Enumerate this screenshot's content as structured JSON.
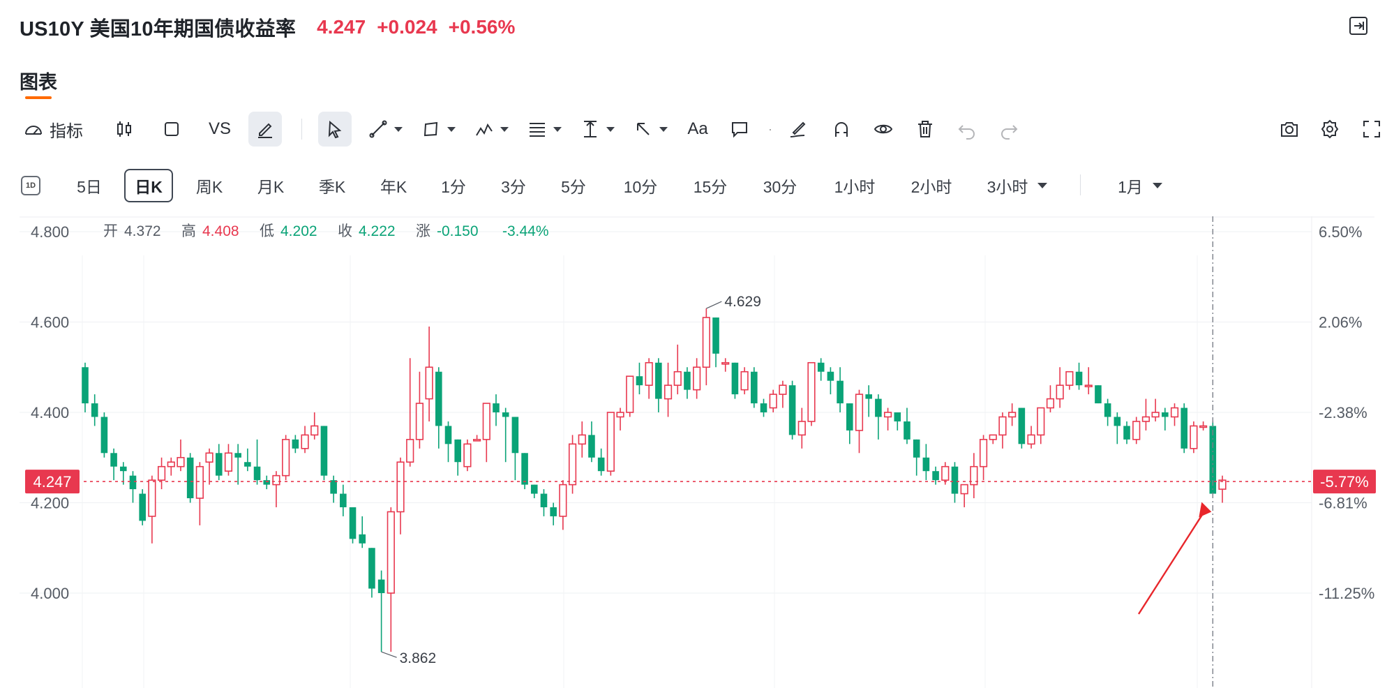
{
  "header": {
    "symbol": "US10Y",
    "name": "美国10年期国债收益率",
    "last": "4.247",
    "change": "+0.024",
    "change_pct": "+0.56%"
  },
  "tab": {
    "label": "图表"
  },
  "toolbar": {
    "indicator_label": "指标",
    "vs_label": "VS",
    "font_label": "Aa"
  },
  "periods": [
    "5日",
    "日K",
    "周K",
    "月K",
    "季K",
    "年K",
    "1分",
    "3分",
    "5分",
    "10分",
    "15分",
    "30分",
    "1小时",
    "2小时",
    "3小时",
    "1月"
  ],
  "selected_period": "日K",
  "icon_1d_label": "1D",
  "ohlc_info": {
    "open_label": "开",
    "open": "4.372",
    "high_label": "高",
    "high": "4.408",
    "low_label": "低",
    "low": "4.202",
    "close_label": "收",
    "close": "4.222",
    "chg_label": "涨",
    "chg": "-0.150",
    "chg_pct": "-3.44%"
  },
  "colors": {
    "up": "#e8384f",
    "down": "#0aa377",
    "accent": "#ff6a00",
    "price_line": "#e8384f"
  },
  "chart_data": {
    "type": "candlestick",
    "ylim": [
      3.82,
      4.82
    ],
    "left_ticks": [
      "4.800",
      "4.600",
      "4.400",
      "4.200",
      "4.000"
    ],
    "left_tick_values": [
      4.8,
      4.6,
      4.4,
      4.2,
      4.0
    ],
    "right_ticks": [
      "6.50%",
      "2.06%",
      "-2.38%",
      "-6.81%",
      "-11.25%"
    ],
    "current_price": 4.247,
    "current_price_label": "4.247",
    "current_pct_label": "-5.77%",
    "max_label": "4.629",
    "min_label": "3.862",
    "candles": [
      [
        4.5,
        4.42,
        4.51,
        4.4
      ],
      [
        4.42,
        4.39,
        4.44,
        4.37
      ],
      [
        4.39,
        4.31,
        4.4,
        4.3
      ],
      [
        4.31,
        4.28,
        4.32,
        4.25
      ],
      [
        4.28,
        4.27,
        4.29,
        4.24
      ],
      [
        4.26,
        4.23,
        4.27,
        4.2
      ],
      [
        4.22,
        4.16,
        4.23,
        4.15
      ],
      [
        4.17,
        4.25,
        4.26,
        4.11
      ],
      [
        4.25,
        4.28,
        4.3,
        4.23
      ],
      [
        4.28,
        4.29,
        4.3,
        4.26
      ],
      [
        4.28,
        4.3,
        4.34,
        4.27
      ],
      [
        4.3,
        4.21,
        4.31,
        4.2
      ],
      [
        4.21,
        4.28,
        4.29,
        4.15
      ],
      [
        4.29,
        4.31,
        4.32,
        4.24
      ],
      [
        4.31,
        4.26,
        4.33,
        4.25
      ],
      [
        4.27,
        4.31,
        4.33,
        4.26
      ],
      [
        4.31,
        4.3,
        4.33,
        4.24
      ],
      [
        4.29,
        4.28,
        4.32,
        4.27
      ],
      [
        4.28,
        4.25,
        4.34,
        4.24
      ],
      [
        4.25,
        4.24,
        4.26,
        4.23
      ],
      [
        4.24,
        4.26,
        4.27,
        4.19
      ],
      [
        4.26,
        4.34,
        4.35,
        4.25
      ],
      [
        4.34,
        4.32,
        4.35,
        4.31
      ],
      [
        4.32,
        4.35,
        4.37,
        4.31
      ],
      [
        4.35,
        4.37,
        4.4,
        4.34
      ],
      [
        4.37,
        4.26,
        4.37,
        4.25
      ],
      [
        4.25,
        4.22,
        4.26,
        4.2
      ],
      [
        4.22,
        4.19,
        4.24,
        4.17
      ],
      [
        4.19,
        4.12,
        4.19,
        4.11
      ],
      [
        4.13,
        4.11,
        4.17,
        4.1
      ],
      [
        4.1,
        4.01,
        4.1,
        3.99
      ],
      [
        4.03,
        4.0,
        4.05,
        3.87
      ],
      [
        4.0,
        4.18,
        4.19,
        3.87
      ],
      [
        4.18,
        4.29,
        4.3,
        4.13
      ],
      [
        4.29,
        4.34,
        4.52,
        4.28
      ],
      [
        4.34,
        4.42,
        4.49,
        4.32
      ],
      [
        4.43,
        4.5,
        4.59,
        4.38
      ],
      [
        4.49,
        4.37,
        4.5,
        4.32
      ],
      [
        4.37,
        4.33,
        4.38,
        4.29
      ],
      [
        4.34,
        4.29,
        4.34,
        4.26
      ],
      [
        4.28,
        4.33,
        4.34,
        4.27
      ],
      [
        4.34,
        4.34,
        4.35,
        4.34
      ],
      [
        4.34,
        4.42,
        4.42,
        4.29
      ],
      [
        4.42,
        4.4,
        4.44,
        4.37
      ],
      [
        4.4,
        4.39,
        4.41,
        4.29
      ],
      [
        4.39,
        4.31,
        4.39,
        4.25
      ],
      [
        4.31,
        4.24,
        4.31,
        4.23
      ],
      [
        4.24,
        4.22,
        4.24,
        4.21
      ],
      [
        4.22,
        4.19,
        4.23,
        4.17
      ],
      [
        4.19,
        4.17,
        4.2,
        4.15
      ],
      [
        4.17,
        4.24,
        4.25,
        4.14
      ],
      [
        4.24,
        4.33,
        4.35,
        4.22
      ],
      [
        4.33,
        4.35,
        4.38,
        4.3
      ],
      [
        4.35,
        4.3,
        4.38,
        4.29
      ],
      [
        4.3,
        4.27,
        4.32,
        4.26
      ],
      [
        4.27,
        4.4,
        4.4,
        4.26
      ],
      [
        4.39,
        4.4,
        4.41,
        4.36
      ],
      [
        4.4,
        4.48,
        4.48,
        4.39
      ],
      [
        4.48,
        4.46,
        4.51,
        4.44
      ],
      [
        4.46,
        4.51,
        4.52,
        4.43
      ],
      [
        4.51,
        4.43,
        4.52,
        4.4
      ],
      [
        4.43,
        4.46,
        4.51,
        4.39
      ],
      [
        4.46,
        4.49,
        4.55,
        4.44
      ],
      [
        4.49,
        4.45,
        4.5,
        4.43
      ],
      [
        4.45,
        4.5,
        4.52,
        4.43
      ],
      [
        4.5,
        4.61,
        4.63,
        4.46
      ],
      [
        4.61,
        4.53,
        4.61,
        4.5
      ],
      [
        4.51,
        4.51,
        4.52,
        4.49
      ],
      [
        4.51,
        4.44,
        4.51,
        4.43
      ],
      [
        4.45,
        4.49,
        4.5,
        4.44
      ],
      [
        4.49,
        4.42,
        4.5,
        4.41
      ],
      [
        4.42,
        4.4,
        4.43,
        4.39
      ],
      [
        4.41,
        4.44,
        4.45,
        4.4
      ],
      [
        4.44,
        4.46,
        4.47,
        4.41
      ],
      [
        4.46,
        4.35,
        4.47,
        4.34
      ],
      [
        4.35,
        4.38,
        4.41,
        4.32
      ],
      [
        4.38,
        4.51,
        4.51,
        4.37
      ],
      [
        4.51,
        4.49,
        4.52,
        4.47
      ],
      [
        4.49,
        4.47,
        4.5,
        4.44
      ],
      [
        4.47,
        4.42,
        4.5,
        4.4
      ],
      [
        4.42,
        4.36,
        4.42,
        4.33
      ],
      [
        4.36,
        4.44,
        4.45,
        4.31
      ],
      [
        4.44,
        4.43,
        4.46,
        4.39
      ],
      [
        4.43,
        4.39,
        4.44,
        4.34
      ],
      [
        4.39,
        4.4,
        4.41,
        4.36
      ],
      [
        4.4,
        4.38,
        4.4,
        4.36
      ],
      [
        4.38,
        4.34,
        4.41,
        4.33
      ],
      [
        4.34,
        4.3,
        4.34,
        4.26
      ],
      [
        4.3,
        4.27,
        4.33,
        4.25
      ],
      [
        4.27,
        4.25,
        4.28,
        4.24
      ],
      [
        4.25,
        4.28,
        4.29,
        4.24
      ],
      [
        4.28,
        4.22,
        4.29,
        4.2
      ],
      [
        4.22,
        4.24,
        4.24,
        4.19
      ],
      [
        4.24,
        4.28,
        4.31,
        4.21
      ],
      [
        4.28,
        4.34,
        4.35,
        4.25
      ],
      [
        4.34,
        4.35,
        4.35,
        4.33
      ],
      [
        4.35,
        4.39,
        4.4,
        4.32
      ],
      [
        4.39,
        4.4,
        4.42,
        4.37
      ],
      [
        4.41,
        4.33,
        4.41,
        4.32
      ],
      [
        4.33,
        4.35,
        4.37,
        4.32
      ],
      [
        4.35,
        4.41,
        4.41,
        4.33
      ],
      [
        4.41,
        4.43,
        4.46,
        4.4
      ],
      [
        4.43,
        4.46,
        4.5,
        4.41
      ],
      [
        4.46,
        4.49,
        4.49,
        4.45
      ],
      [
        4.49,
        4.46,
        4.51,
        4.45
      ],
      [
        4.46,
        4.46,
        4.5,
        4.44
      ],
      [
        4.46,
        4.42,
        4.46,
        4.42
      ],
      [
        4.42,
        4.39,
        4.43,
        4.37
      ],
      [
        4.39,
        4.37,
        4.4,
        4.33
      ],
      [
        4.37,
        4.34,
        4.38,
        4.33
      ],
      [
        4.34,
        4.38,
        4.39,
        4.33
      ],
      [
        4.38,
        4.39,
        4.43,
        4.36
      ],
      [
        4.39,
        4.4,
        4.43,
        4.38
      ],
      [
        4.4,
        4.39,
        4.41,
        4.36
      ],
      [
        4.39,
        4.41,
        4.42,
        4.37
      ],
      [
        4.41,
        4.32,
        4.42,
        4.31
      ],
      [
        4.32,
        4.37,
        4.38,
        4.31
      ],
      [
        4.37,
        4.37,
        4.38,
        4.36
      ],
      [
        4.37,
        4.22,
        4.38,
        4.22
      ],
      [
        4.23,
        4.25,
        4.26,
        4.2
      ]
    ]
  }
}
